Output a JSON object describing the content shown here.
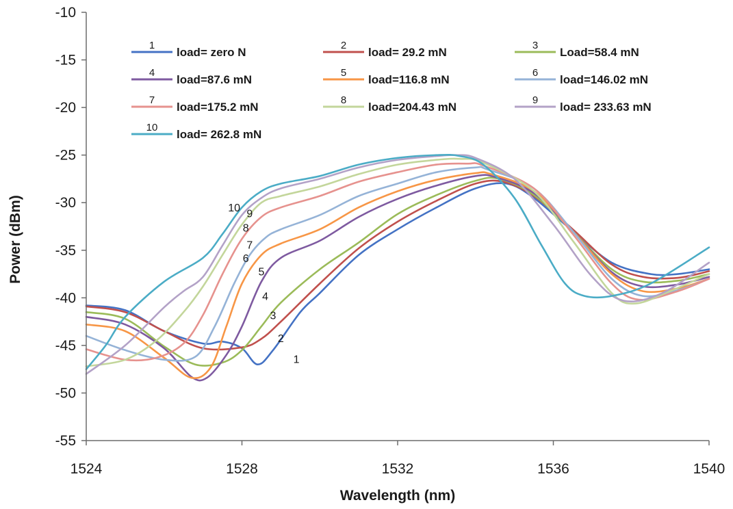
{
  "chart_data": {
    "type": "line",
    "title": "",
    "xlabel": "Wavelength (nm)",
    "ylabel": "Power (dBm)",
    "xlim": [
      1524,
      1540
    ],
    "ylim": [
      -55,
      -10
    ],
    "xticks": [
      1524,
      1528,
      1532,
      1536,
      1540
    ],
    "yticks": [
      -10,
      -15,
      -20,
      -25,
      -30,
      -35,
      -40,
      -45,
      -50,
      -55
    ],
    "grid": false,
    "legend_position": "top-left inside",
    "series": [
      {
        "id": "1",
        "name": "load= zero N",
        "color": "#4472c4",
        "points": [
          [
            1524,
            -40.8
          ],
          [
            1525,
            -41.3
          ],
          [
            1526,
            -43.5
          ],
          [
            1527,
            -44.8
          ],
          [
            1527.5,
            -44.6
          ],
          [
            1528,
            -45.3
          ],
          [
            1528.4,
            -47
          ],
          [
            1528.8,
            -45.5
          ],
          [
            1529.5,
            -41.5
          ],
          [
            1530,
            -39.5
          ],
          [
            1531,
            -35.5
          ],
          [
            1532,
            -32.8
          ],
          [
            1533,
            -30.5
          ],
          [
            1534,
            -28.5
          ],
          [
            1534.8,
            -28
          ],
          [
            1535.5,
            -29.5
          ],
          [
            1536.5,
            -33
          ],
          [
            1537.5,
            -36.3
          ],
          [
            1538.5,
            -37.5
          ],
          [
            1539.2,
            -37.5
          ],
          [
            1540,
            -37
          ]
        ]
      },
      {
        "id": "2",
        "name": "load= 29.2 mN",
        "color": "#c0504d",
        "points": [
          [
            1524,
            -40.9
          ],
          [
            1525,
            -41.5
          ],
          [
            1526,
            -43.5
          ],
          [
            1527,
            -45.3
          ],
          [
            1528,
            -45.2
          ],
          [
            1528.5,
            -44.3
          ],
          [
            1529,
            -42.5
          ],
          [
            1530,
            -38.5
          ],
          [
            1531,
            -34.8
          ],
          [
            1532,
            -32
          ],
          [
            1533,
            -29.8
          ],
          [
            1534,
            -28
          ],
          [
            1534.7,
            -27.8
          ],
          [
            1535.5,
            -29.3
          ],
          [
            1536.5,
            -32.8
          ],
          [
            1537.5,
            -36.5
          ],
          [
            1538.3,
            -37.8
          ],
          [
            1539.2,
            -37.9
          ],
          [
            1540,
            -37.2
          ]
        ]
      },
      {
        "id": "3",
        "name": "Load=58.4 mN",
        "color": "#9bbb59",
        "points": [
          [
            1524,
            -41.5
          ],
          [
            1525,
            -42.2
          ],
          [
            1526,
            -45.1
          ],
          [
            1526.8,
            -47
          ],
          [
            1527.5,
            -46.8
          ],
          [
            1528,
            -45.5
          ],
          [
            1528.5,
            -43
          ],
          [
            1529,
            -40.5
          ],
          [
            1530,
            -37
          ],
          [
            1531,
            -34.2
          ],
          [
            1532,
            -31.2
          ],
          [
            1533,
            -29.2
          ],
          [
            1534,
            -27.7
          ],
          [
            1534.6,
            -27.5
          ],
          [
            1535.5,
            -29.2
          ],
          [
            1536.5,
            -33
          ],
          [
            1537.5,
            -37
          ],
          [
            1538.3,
            -38.3
          ],
          [
            1539.2,
            -38.2
          ],
          [
            1540,
            -37.5
          ]
        ]
      },
      {
        "id": "4",
        "name": "load=87.6 mN",
        "color": "#7e5aa0",
        "points": [
          [
            1524,
            -42
          ],
          [
            1525,
            -42.8
          ],
          [
            1526,
            -45.3
          ],
          [
            1526.7,
            -48.3
          ],
          [
            1527.1,
            -48.4
          ],
          [
            1527.6,
            -46
          ],
          [
            1528,
            -43
          ],
          [
            1528.5,
            -38.3
          ],
          [
            1529,
            -35.8
          ],
          [
            1530,
            -34
          ],
          [
            1531,
            -31.5
          ],
          [
            1532,
            -29.6
          ],
          [
            1533,
            -28.2
          ],
          [
            1534,
            -27.2
          ],
          [
            1534.5,
            -27.3
          ],
          [
            1535.5,
            -29
          ],
          [
            1536.5,
            -33
          ],
          [
            1537.5,
            -37.3
          ],
          [
            1538.3,
            -38.8
          ],
          [
            1539.2,
            -38.6
          ],
          [
            1540,
            -37.8
          ]
        ]
      },
      {
        "id": "5",
        "name": "load=116.8 mN",
        "color": "#f79646",
        "points": [
          [
            1524,
            -42.8
          ],
          [
            1525,
            -43.5
          ],
          [
            1526,
            -46.3
          ],
          [
            1526.7,
            -48.4
          ],
          [
            1527.2,
            -47.3
          ],
          [
            1527.6,
            -43
          ],
          [
            1528,
            -38.5
          ],
          [
            1528.5,
            -35.5
          ],
          [
            1529,
            -34.3
          ],
          [
            1530,
            -32.8
          ],
          [
            1531,
            -30.5
          ],
          [
            1532,
            -28.8
          ],
          [
            1533,
            -27.6
          ],
          [
            1534,
            -26.9
          ],
          [
            1534.4,
            -27
          ],
          [
            1535.5,
            -28.8
          ],
          [
            1536.5,
            -33
          ],
          [
            1537.5,
            -37.5
          ],
          [
            1538.3,
            -39.3
          ],
          [
            1539.2,
            -39
          ],
          [
            1540,
            -38
          ]
        ]
      },
      {
        "id": "6",
        "name": "load=146.02 mN",
        "color": "#95b3d7",
        "points": [
          [
            1524,
            -44
          ],
          [
            1525,
            -45.5
          ],
          [
            1526,
            -46.5
          ],
          [
            1526.8,
            -46.2
          ],
          [
            1527.3,
            -43
          ],
          [
            1527.8,
            -38.5
          ],
          [
            1528.2,
            -35.5
          ],
          [
            1528.6,
            -33.7
          ],
          [
            1529,
            -32.8
          ],
          [
            1530,
            -31.3
          ],
          [
            1531,
            -29.3
          ],
          [
            1532,
            -28
          ],
          [
            1533,
            -26.8
          ],
          [
            1534,
            -26.3
          ],
          [
            1534.3,
            -26.5
          ],
          [
            1535.5,
            -28.5
          ],
          [
            1536.5,
            -33
          ],
          [
            1537.5,
            -38
          ],
          [
            1538.3,
            -39.8
          ],
          [
            1539.2,
            -39.2
          ],
          [
            1540,
            -38
          ]
        ]
      },
      {
        "id": "7",
        "name": "load=175.2 mN",
        "color": "#e6928e",
        "points": [
          [
            1524,
            -45.4
          ],
          [
            1525,
            -46.5
          ],
          [
            1525.8,
            -46.3
          ],
          [
            1526.5,
            -44.8
          ],
          [
            1527,
            -41.8
          ],
          [
            1527.5,
            -37.5
          ],
          [
            1528,
            -33.8
          ],
          [
            1528.5,
            -31.5
          ],
          [
            1529,
            -30.5
          ],
          [
            1530,
            -29.3
          ],
          [
            1531,
            -27.8
          ],
          [
            1532,
            -26.8
          ],
          [
            1533,
            -26
          ],
          [
            1533.8,
            -25.9
          ],
          [
            1534.2,
            -26.1
          ],
          [
            1535.5,
            -28.5
          ],
          [
            1536.5,
            -33.3
          ],
          [
            1537.5,
            -38.5
          ],
          [
            1538.2,
            -40.2
          ],
          [
            1539.2,
            -39.3
          ],
          [
            1540,
            -38
          ]
        ]
      },
      {
        "id": "8",
        "name": "load=204.43 mN",
        "color": "#c3d69b",
        "points": [
          [
            1524,
            -47.2
          ],
          [
            1525,
            -46.5
          ],
          [
            1525.8,
            -44.5
          ],
          [
            1526.5,
            -41.5
          ],
          [
            1527,
            -38.8
          ],
          [
            1527.5,
            -35.5
          ],
          [
            1528,
            -32.3
          ],
          [
            1528.5,
            -30
          ],
          [
            1529,
            -29.3
          ],
          [
            1530,
            -28.3
          ],
          [
            1531,
            -27
          ],
          [
            1532,
            -26
          ],
          [
            1533,
            -25.5
          ],
          [
            1533.6,
            -25.4
          ],
          [
            1534.2,
            -25.8
          ],
          [
            1535.5,
            -28.8
          ],
          [
            1536.5,
            -34
          ],
          [
            1537.5,
            -39.5
          ],
          [
            1538.1,
            -40.6
          ],
          [
            1539,
            -39.3
          ],
          [
            1540,
            -37.5
          ]
        ]
      },
      {
        "id": "9",
        "name": "load= 233.63 mN",
        "color": "#b3a2c7",
        "points": [
          [
            1524,
            -48
          ],
          [
            1525,
            -45
          ],
          [
            1526,
            -41
          ],
          [
            1526.5,
            -39.3
          ],
          [
            1527,
            -37.8
          ],
          [
            1527.5,
            -34.5
          ],
          [
            1528,
            -31.3
          ],
          [
            1528.5,
            -29.5
          ],
          [
            1529,
            -28.5
          ],
          [
            1530,
            -27.5
          ],
          [
            1531,
            -26.3
          ],
          [
            1532,
            -25.5
          ],
          [
            1533,
            -25.1
          ],
          [
            1533.5,
            -25
          ],
          [
            1534,
            -25.3
          ],
          [
            1535,
            -27.5
          ],
          [
            1536,
            -32.3
          ],
          [
            1537,
            -37.8
          ],
          [
            1537.8,
            -40.3
          ],
          [
            1538.8,
            -39.5
          ],
          [
            1540,
            -36.3
          ]
        ]
      },
      {
        "id": "10",
        "name": "load= 262.8 mN",
        "color": "#4bacc6",
        "points": [
          [
            1524,
            -47.5
          ],
          [
            1524.5,
            -45
          ],
          [
            1525,
            -42
          ],
          [
            1526,
            -38.3
          ],
          [
            1527,
            -35.8
          ],
          [
            1527.5,
            -33.3
          ],
          [
            1528,
            -30.5
          ],
          [
            1528.5,
            -28.8
          ],
          [
            1529,
            -28
          ],
          [
            1530,
            -27.2
          ],
          [
            1531,
            -26
          ],
          [
            1532,
            -25.3
          ],
          [
            1533,
            -25
          ],
          [
            1533.6,
            -25.1
          ],
          [
            1534.2,
            -26
          ],
          [
            1535,
            -29.5
          ],
          [
            1535.7,
            -34.5
          ],
          [
            1536.3,
            -38.5
          ],
          [
            1536.8,
            -39.8
          ],
          [
            1537.5,
            -39.8
          ],
          [
            1538.5,
            -38.5
          ],
          [
            1540,
            -34.7
          ]
        ]
      }
    ],
    "curve_labels": [
      {
        "text": "10",
        "x": 1527.8,
        "y": -30.5
      },
      {
        "text": "9",
        "x": 1528.2,
        "y": -31.1
      },
      {
        "text": "8",
        "x": 1528.1,
        "y": -32.6
      },
      {
        "text": "7",
        "x": 1528.2,
        "y": -34.4
      },
      {
        "text": "6",
        "x": 1528.1,
        "y": -35.8
      },
      {
        "text": "5",
        "x": 1528.5,
        "y": -37.2
      },
      {
        "text": "4",
        "x": 1528.6,
        "y": -39.8
      },
      {
        "text": "3",
        "x": 1528.8,
        "y": -41.8
      },
      {
        "text": "2",
        "x": 1529.0,
        "y": -44.2
      },
      {
        "text": "1",
        "x": 1529.4,
        "y": -46.4
      }
    ]
  }
}
